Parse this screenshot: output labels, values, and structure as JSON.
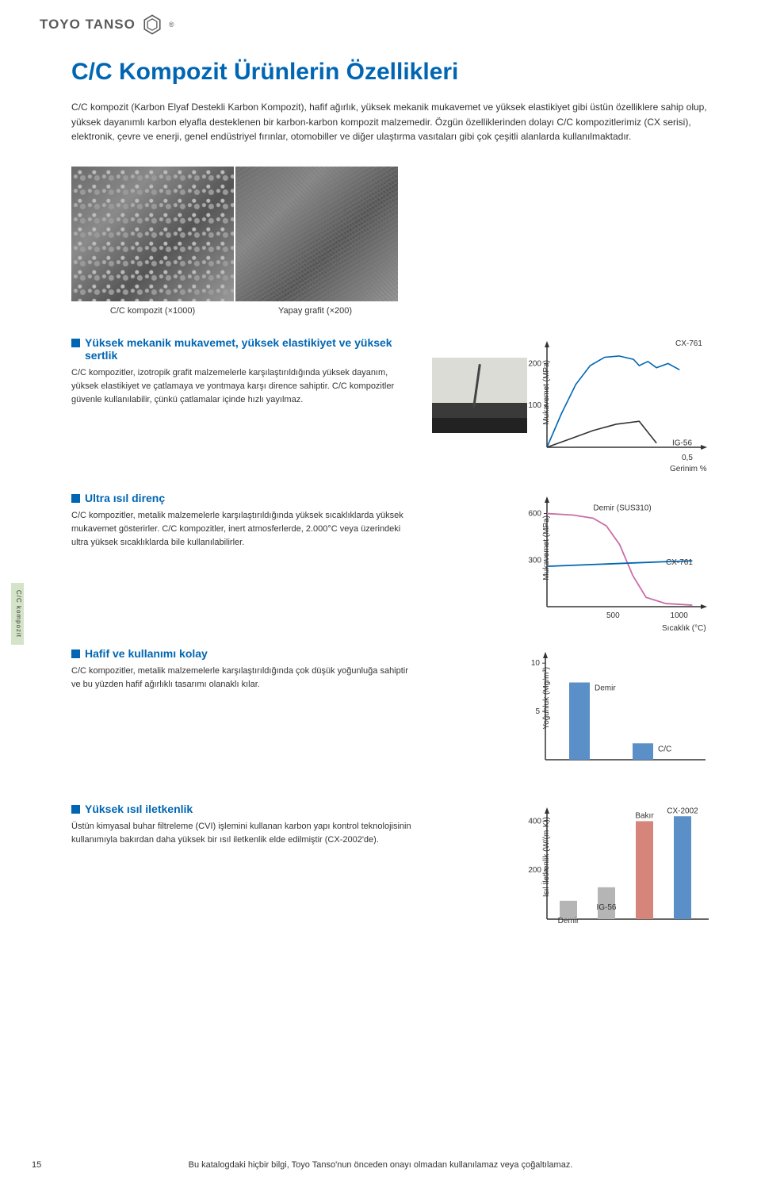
{
  "header": {
    "brand": "TOYO TANSO"
  },
  "title": "C/C Kompozit Ürünlerin Özellikleri",
  "intro": "C/C kompozit (Karbon Elyaf Destekli Karbon Kompozit), hafif ağırlık, yüksek mekanik mukavemet ve yüksek elastikiyet gibi üstün özelliklere sahip olup, yüksek dayanımlı karbon elyafla desteklenen bir karbon-karbon kompozit malzemedir. Özgün özelliklerinden dolayı C/C kompozitlerimiz (CX serisi), elektronik, çevre ve enerji, genel endüstriyel fırınlar, otomobiller ve diğer ulaştırma vasıtaları gibi çok çeşitli alanlarda kullanılmaktadır.",
  "captions": {
    "left": "C/C kompozit (×1000)",
    "right": "Yapay grafit (×200)"
  },
  "side_tab": "C/C kompozit",
  "sections": {
    "s1": {
      "title": "Yüksek mekanik mukavemet, yüksek elastikiyet ve yüksek sertlik",
      "body": "C/C kompozitler, izotropik grafit malzemelerle karşılaştırıldığında yüksek dayanım, yüksek elastikiyet ve çatlamaya ve yontmaya karşı dirence sahiptir. C/C kompozitler güvenle kullanılabilir, çünkü çatlamalar içinde hızlı yayılmaz."
    },
    "s2": {
      "title": "Ultra ısıl direnç",
      "body": "C/C kompozitler, metalik malzemelerle karşılaştırıldığında yüksek sıcaklıklarda yüksek mukavemet gösterirler. C/C kompozitler, inert atmosferlerde, 2.000°C veya üzerindeki ultra yüksek sıcaklıklarda bile kullanılabilirler."
    },
    "s3": {
      "title": "Hafif ve kullanımı kolay",
      "body": "C/C kompozitler, metalik malzemelerle karşılaştırıldığında çok düşük yoğunluğa sahiptir ve bu yüzden hafif ağırlıklı tasarımı olanaklı kılar."
    },
    "s4": {
      "title": "Yüksek ısıl iletkenlik",
      "body": "Üstün kimyasal buhar filtreleme (CVI) işlemini kullanan karbon yapı kontrol teknolojisinin kullanımıyla bakırdan daha yüksek bir ısıl iletkenlik elde edilmiştir (CX-2002'de)."
    }
  },
  "chart1": {
    "type": "line",
    "ylabel": "Mukavemet (MPa)",
    "xlabel": "Gerinim %",
    "yticks": [
      100,
      200
    ],
    "xticks_label": "0,5",
    "series": {
      "CX761": {
        "label": "CX-761",
        "color": "#0066b3",
        "points": [
          [
            0,
            0
          ],
          [
            0.05,
            80
          ],
          [
            0.1,
            150
          ],
          [
            0.15,
            195
          ],
          [
            0.2,
            215
          ],
          [
            0.25,
            218
          ],
          [
            0.3,
            210
          ],
          [
            0.32,
            195
          ],
          [
            0.35,
            205
          ],
          [
            0.38,
            190
          ],
          [
            0.42,
            200
          ],
          [
            0.46,
            185
          ]
        ]
      },
      "IG56": {
        "label": "IG-56",
        "color": "#333333",
        "points": [
          [
            0,
            0
          ],
          [
            0.08,
            20
          ],
          [
            0.16,
            40
          ],
          [
            0.24,
            55
          ],
          [
            0.32,
            62
          ],
          [
            0.38,
            10
          ]
        ]
      }
    },
    "xlim": [
      0,
      0.55
    ],
    "ylim": [
      0,
      250
    ]
  },
  "chart2": {
    "type": "line",
    "ylabel": "Mukavemet (MPa)",
    "xlabel": "Sıcaklık (°C)",
    "yticks": [
      300,
      600
    ],
    "xticks": [
      500,
      1000
    ],
    "series": {
      "Demir": {
        "label": "Demir (SUS310)",
        "color": "#c96fa8",
        "points": [
          [
            0,
            600
          ],
          [
            200,
            590
          ],
          [
            350,
            570
          ],
          [
            450,
            520
          ],
          [
            550,
            400
          ],
          [
            650,
            200
          ],
          [
            750,
            60
          ],
          [
            900,
            20
          ],
          [
            1100,
            10
          ]
        ]
      },
      "CX761": {
        "label": "CX-761",
        "color": "#0066b3",
        "points": [
          [
            0,
            260
          ],
          [
            300,
            270
          ],
          [
            600,
            280
          ],
          [
            900,
            290
          ],
          [
            1100,
            295
          ]
        ]
      }
    },
    "xlim": [
      0,
      1200
    ],
    "ylim": [
      0,
      700
    ]
  },
  "chart3": {
    "type": "bar",
    "ylabel": "Yoğunluk (Mg/m³)",
    "yticks": [
      5,
      10
    ],
    "categories": [
      "Demir",
      "C/C"
    ],
    "values": [
      8,
      1.7
    ],
    "colors": [
      "#5b8fc7",
      "#5b8fc7"
    ],
    "ylim": [
      0,
      11
    ]
  },
  "chart4": {
    "type": "bar",
    "ylabel": "Isıl İletkenlik (W/(m·K))",
    "yticks": [
      200,
      400
    ],
    "categories": [
      "Demir",
      "IG-56",
      "Bakır",
      "CX-2002"
    ],
    "values": [
      75,
      130,
      400,
      420
    ],
    "colors": [
      "#b5b5b5",
      "#b5b5b5",
      "#d6857a",
      "#5b8fc7"
    ],
    "ylim": [
      0,
      450
    ]
  },
  "footer": {
    "page": "15",
    "disclaimer": "Bu katalogdaki hiçbir bilgi, Toyo Tanso'nun önceden onayı olmadan kullanılamaz veya çoğaltılamaz."
  }
}
